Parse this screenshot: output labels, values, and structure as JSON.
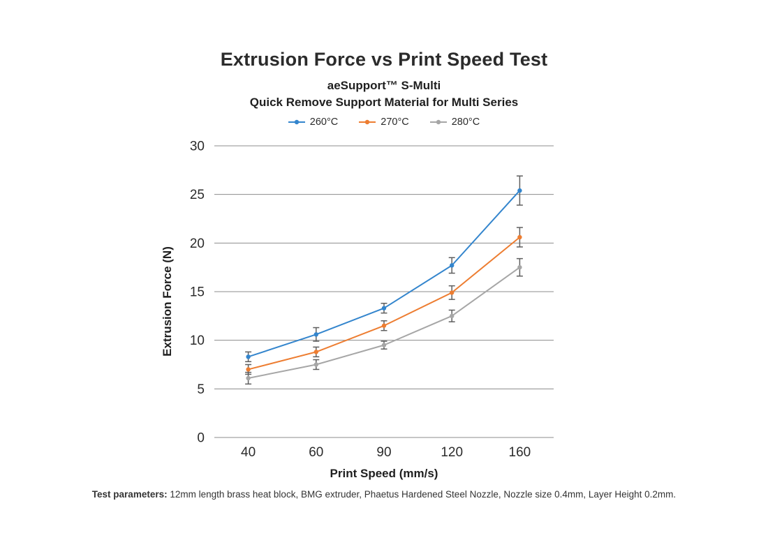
{
  "page": {
    "footer_label": "Test parameters:",
    "footer_text": " 12mm length brass heat block, BMG extruder, Phaetus Hardened Steel Nozzle, Nozzle size 0.4mm, Layer Height 0.2mm."
  },
  "chart_data": {
    "type": "line",
    "title": "Extrusion Force vs Print Speed Test",
    "subtitle": [
      "aeSupport™ S-Multi",
      "Quick Remove Support Material for Multi Series"
    ],
    "xlabel": "Print Speed (mm/s)",
    "ylabel": "Extrusion Force (N)",
    "categories": [
      "40",
      "60",
      "90",
      "120",
      "160"
    ],
    "yticks": [
      0,
      5,
      10,
      15,
      20,
      25,
      30
    ],
    "ylim": [
      0,
      30
    ],
    "grid": true,
    "legend_position": "top",
    "error_bars": true,
    "series": [
      {
        "name": "260°C",
        "color": "#3385CD",
        "values": [
          8.3,
          10.6,
          13.3,
          17.7,
          25.4
        ],
        "errors": [
          0.5,
          0.7,
          0.5,
          0.8,
          1.5
        ]
      },
      {
        "name": "270°C",
        "color": "#ED7D31",
        "values": [
          7.0,
          8.8,
          11.5,
          14.9,
          20.6
        ],
        "errors": [
          0.5,
          0.5,
          0.5,
          0.7,
          1.0
        ]
      },
      {
        "name": "280°C",
        "color": "#A6A6A6",
        "values": [
          6.1,
          7.5,
          9.5,
          12.5,
          17.5
        ],
        "errors": [
          0.6,
          0.5,
          0.4,
          0.6,
          0.9
        ]
      }
    ],
    "colors": {
      "grid": "#8C8C8C",
      "error_bar": "#5F5F5F",
      "text": "#2B2B2B"
    }
  }
}
